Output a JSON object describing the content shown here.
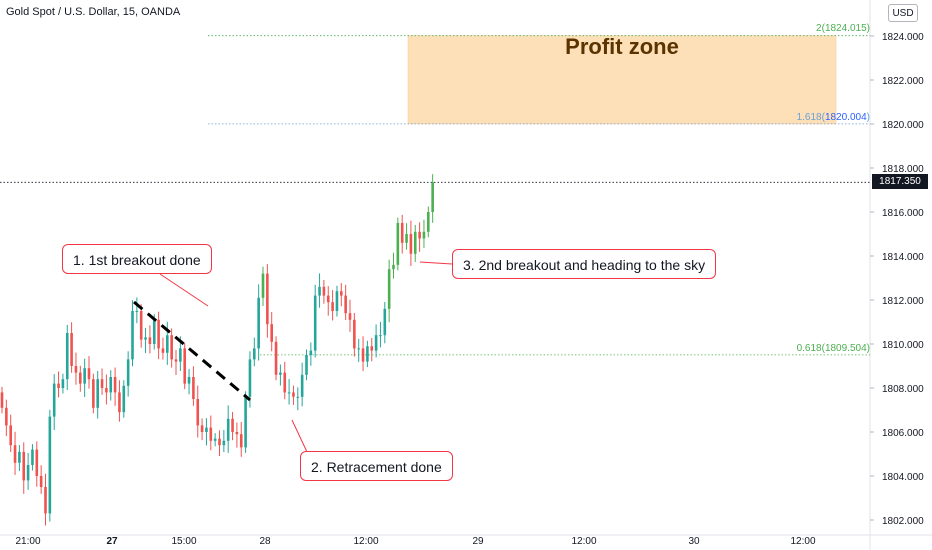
{
  "header": {
    "title": "Gold Spot / U.S. Dollar, 15, OANDA",
    "currency": "USD"
  },
  "price": {
    "current_label": "1817.350",
    "current_value": 1817.35
  },
  "chart_data": {
    "type": "candlestick",
    "ylim": [
      1801.8,
      1824.6
    ],
    "y_ticks": [
      "1802.000",
      "1804.000",
      "1806.000",
      "1808.000",
      "1810.000",
      "1812.000",
      "1814.000",
      "1816.000",
      "1818.000",
      "1820.000",
      "1822.000",
      "1824.000"
    ],
    "x_ticks": [
      "21:00",
      "27",
      "15:00",
      "28",
      "12:00",
      "29",
      "12:00",
      "30",
      "12:00"
    ],
    "series": [
      {
        "close": [
          1807.1,
          1806.3,
          1805.4,
          1804.6,
          1805.1,
          1803.8,
          1804.5,
          1805.2,
          1804.0,
          1803.5,
          1802.3,
          1806.7,
          1808.2,
          1808.0,
          1808.4,
          1810.5,
          1809.0,
          1808.7,
          1808.2,
          1808.9,
          1808.4,
          1807.1,
          1808.4,
          1808.0,
          1807.8,
          1808.5,
          1807.8,
          1806.9,
          1808.1,
          1809.3,
          1811.5,
          1811.5,
          1810.2,
          1810.3,
          1810.0,
          1811.1,
          1809.8,
          1809.6,
          1810.4,
          1809.3,
          1809.2,
          1809.8,
          1808.2,
          1808.5,
          1807.5,
          1806.3,
          1806.0,
          1806.2,
          1805.6,
          1805.7,
          1805.4,
          1805.6,
          1806.6,
          1806.0,
          1805.9,
          1805.3,
          1807.6,
          1809.3,
          1809.8,
          1812.1,
          1813.2,
          1810.9,
          1810.1,
          1808.6,
          1808.7,
          1807.8,
          1807.8,
          1807.6,
          1807.6,
          1808.6,
          1809.5,
          1809.7,
          1812.2,
          1812.6,
          1812.2,
          1811.9,
          1811.5,
          1812.4,
          1812.2,
          1811.4,
          1811.1,
          1809.8,
          1809.8,
          1809.2,
          1809.9,
          1809.7,
          1810.4,
          1810.4,
          1811.6,
          1813.4,
          1813.6,
          1815.5,
          1814.6,
          1815.0,
          1814.1,
          1815.1,
          1814.8,
          1815.1,
          1816.0,
          1817.35
        ]
      }
    ],
    "fib_levels": [
      {
        "ratio": "2",
        "price": "1824.015",
        "value": 1824.015
      },
      {
        "ratio": "1.618",
        "price": "1820.004",
        "value": 1820.004
      },
      {
        "ratio": "0.618",
        "price": "1809.504",
        "value": 1809.504
      }
    ],
    "profit_zone": {
      "label": "Profit zone",
      "top": 1824.015,
      "bottom": 1820.004
    },
    "annotations": [
      "1. 1st breakout done",
      "2. Retracement done",
      "3. 2nd breakout and heading to the sky"
    ],
    "colors": {
      "up": "#26a69a",
      "up_bright": "#4caf50",
      "down": "#ef5350",
      "zone_fill": "#fde0b8",
      "fib_line": "#6a9fd6",
      "fib_green": "#4caf50",
      "callout_border": "#f23645",
      "trendline": "#000000"
    }
  }
}
